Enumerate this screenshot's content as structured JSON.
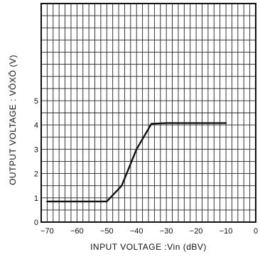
{
  "chart_data": {
    "type": "line",
    "title": "",
    "xlabel": "INPUT  VOLTAGE :Vin  (dBV)",
    "ylabel": "OUTPUT  VOLTAGE : VŌXŌ  (V)",
    "xlim": [
      -72,
      0
    ],
    "ylim": [
      0,
      9
    ],
    "x_ticks": [
      -70,
      -60,
      -50,
      -40,
      -30,
      -20,
      -10,
      0
    ],
    "x_tick_labels": [
      "−70",
      "−60",
      "−50",
      "−40",
      "−30",
      "−20",
      "−10",
      "0"
    ],
    "y_ticks": [
      0,
      1,
      2,
      3,
      4,
      5
    ],
    "y_tick_labels": [
      "0",
      "1",
      "2",
      "3",
      "4",
      "5"
    ],
    "grid": true,
    "series": [
      {
        "x": [
          -70,
          -50,
          -45,
          -40,
          -35,
          -30,
          -10
        ],
        "y": [
          0.85,
          0.85,
          1.5,
          3.0,
          4.05,
          4.08,
          4.08
        ]
      }
    ]
  }
}
